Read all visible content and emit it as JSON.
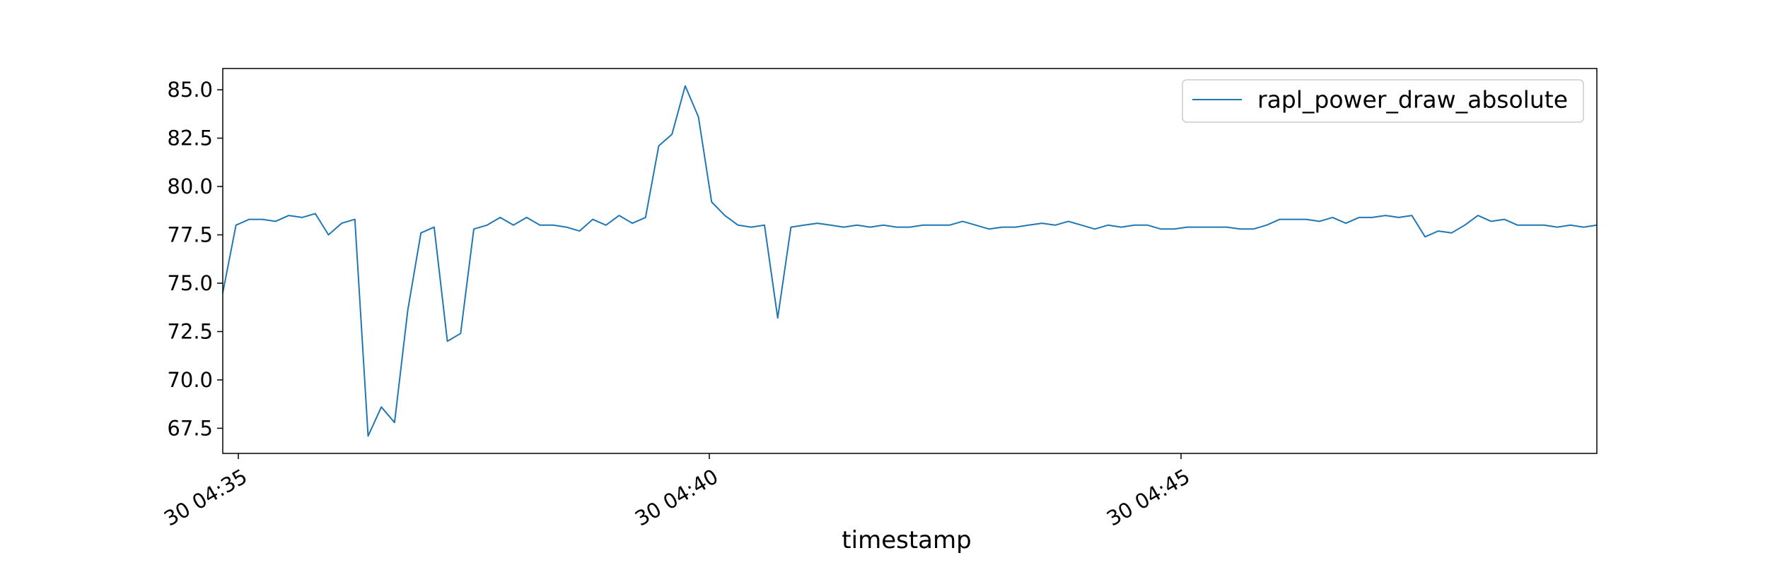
{
  "chart_data": {
    "type": "line",
    "title": "",
    "xlabel": "timestamp",
    "ylabel": "",
    "x_tick_labels": [
      "30 04:35",
      "30 04:40",
      "30 04:45"
    ],
    "y_tick_labels": [
      "67.5",
      "70.0",
      "72.5",
      "75.0",
      "77.5",
      "80.0",
      "82.5",
      "85.0"
    ],
    "ylim": [
      66.2,
      86.1
    ],
    "grid": false,
    "legend": "top-right",
    "colors": {
      "series": "#1f77b4",
      "axes": "#000000"
    },
    "series": [
      {
        "name": "rapl_power_draw_absolute",
        "values": [
          74.5,
          78.0,
          78.3,
          78.3,
          78.2,
          78.5,
          78.4,
          78.6,
          77.5,
          78.1,
          78.3,
          67.1,
          68.6,
          67.8,
          73.6,
          77.6,
          77.9,
          72.0,
          72.4,
          77.8,
          78.0,
          78.4,
          78.0,
          78.4,
          78.0,
          78.0,
          77.9,
          77.7,
          78.3,
          78.0,
          78.5,
          78.1,
          78.4,
          82.1,
          82.7,
          85.2,
          83.6,
          79.2,
          78.5,
          78.0,
          77.9,
          78.0,
          73.2,
          77.9,
          78.0,
          78.1,
          78.0,
          77.9,
          78.0,
          77.9,
          78.0,
          77.9,
          77.9,
          78.0,
          78.0,
          78.0,
          78.2,
          78.0,
          77.8,
          77.9,
          77.9,
          78.0,
          78.1,
          78.0,
          78.2,
          78.0,
          77.8,
          78.0,
          77.9,
          78.0,
          78.0,
          77.8,
          77.8,
          77.9,
          77.9,
          77.9,
          77.9,
          77.8,
          77.8,
          78.0,
          78.3,
          78.3,
          78.3,
          78.2,
          78.4,
          78.1,
          78.4,
          78.4,
          78.5,
          78.4,
          78.5,
          77.4,
          77.7,
          77.6,
          78.0,
          78.5,
          78.2,
          78.3,
          78.0,
          78.0,
          78.0,
          77.9,
          78.0,
          77.9,
          78.0
        ]
      }
    ]
  }
}
